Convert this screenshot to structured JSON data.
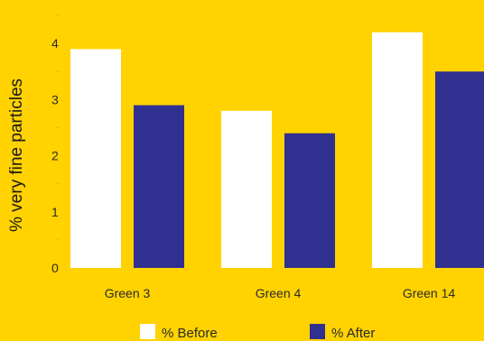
{
  "colors": {
    "background": "#FFD200",
    "before": "#FFFFFF",
    "after": "#303090",
    "minor_tick": "#E8BE00"
  },
  "chart_data": {
    "type": "bar",
    "categories": [
      "Green 3",
      "Green 4",
      "Green 14"
    ],
    "series": [
      {
        "name": "% Before",
        "values": [
          3.9,
          2.8,
          4.2
        ]
      },
      {
        "name": "% After",
        "values": [
          2.9,
          2.4,
          3.5
        ]
      }
    ],
    "title": "",
    "xlabel": "",
    "ylabel": "% very fine particles",
    "ylim": [
      0,
      4.6
    ],
    "yticks": [
      "0",
      "1",
      "2",
      "3",
      "4"
    ],
    "grid": false,
    "legend": "bottom"
  }
}
